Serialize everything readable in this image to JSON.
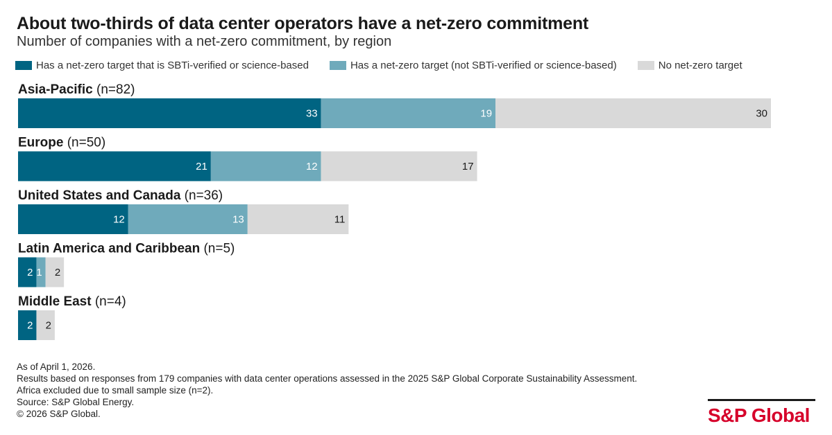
{
  "chart_data": {
    "type": "bar",
    "orientation": "horizontal",
    "stacked": true,
    "title": "About two-thirds of data center operators have a net-zero commitment",
    "subtitle": "Number of companies with a net-zero commitment, by region",
    "categories": [
      {
        "name": "Asia-Pacific",
        "n": "(n=82)"
      },
      {
        "name": "Europe",
        "n": "(n=50)"
      },
      {
        "name": "United States and Canada",
        "n": "(n=36)"
      },
      {
        "name": "Latin America and Caribbean",
        "n": "(n=5)"
      },
      {
        "name": "Middle East",
        "n": "(n=4)"
      }
    ],
    "series": [
      {
        "name": "Has a net-zero target that is SBTi-verified or science-based",
        "color": "#006482",
        "label_color": "#ffffff",
        "values": [
          33,
          21,
          12,
          2,
          2
        ]
      },
      {
        "name": "Has a net-zero target (not SBTi-verified or science-based)",
        "color": "#6faabb",
        "label_color": "#ffffff",
        "values": [
          19,
          12,
          13,
          1,
          0
        ]
      },
      {
        "name": "No net-zero target",
        "color": "#d9d9d9",
        "label_color": "#1a1a1a",
        "values": [
          30,
          17,
          11,
          2,
          2
        ]
      }
    ],
    "legend": "top",
    "grid": false,
    "xlim": [
      0,
      82
    ]
  },
  "footnotes": [
    "As of April 1, 2026.",
    "Results based on responses from 179 companies with data center operations assessed in the 2025 S&P Global Corporate Sustainability Assessment.",
    "Africa excluded due to small sample size (n=2).",
    "Source: S&P Global Energy.",
    "© 2026 S&P Global."
  ],
  "brand": {
    "logo_text": "S&P Global",
    "color": "#d6002a"
  }
}
